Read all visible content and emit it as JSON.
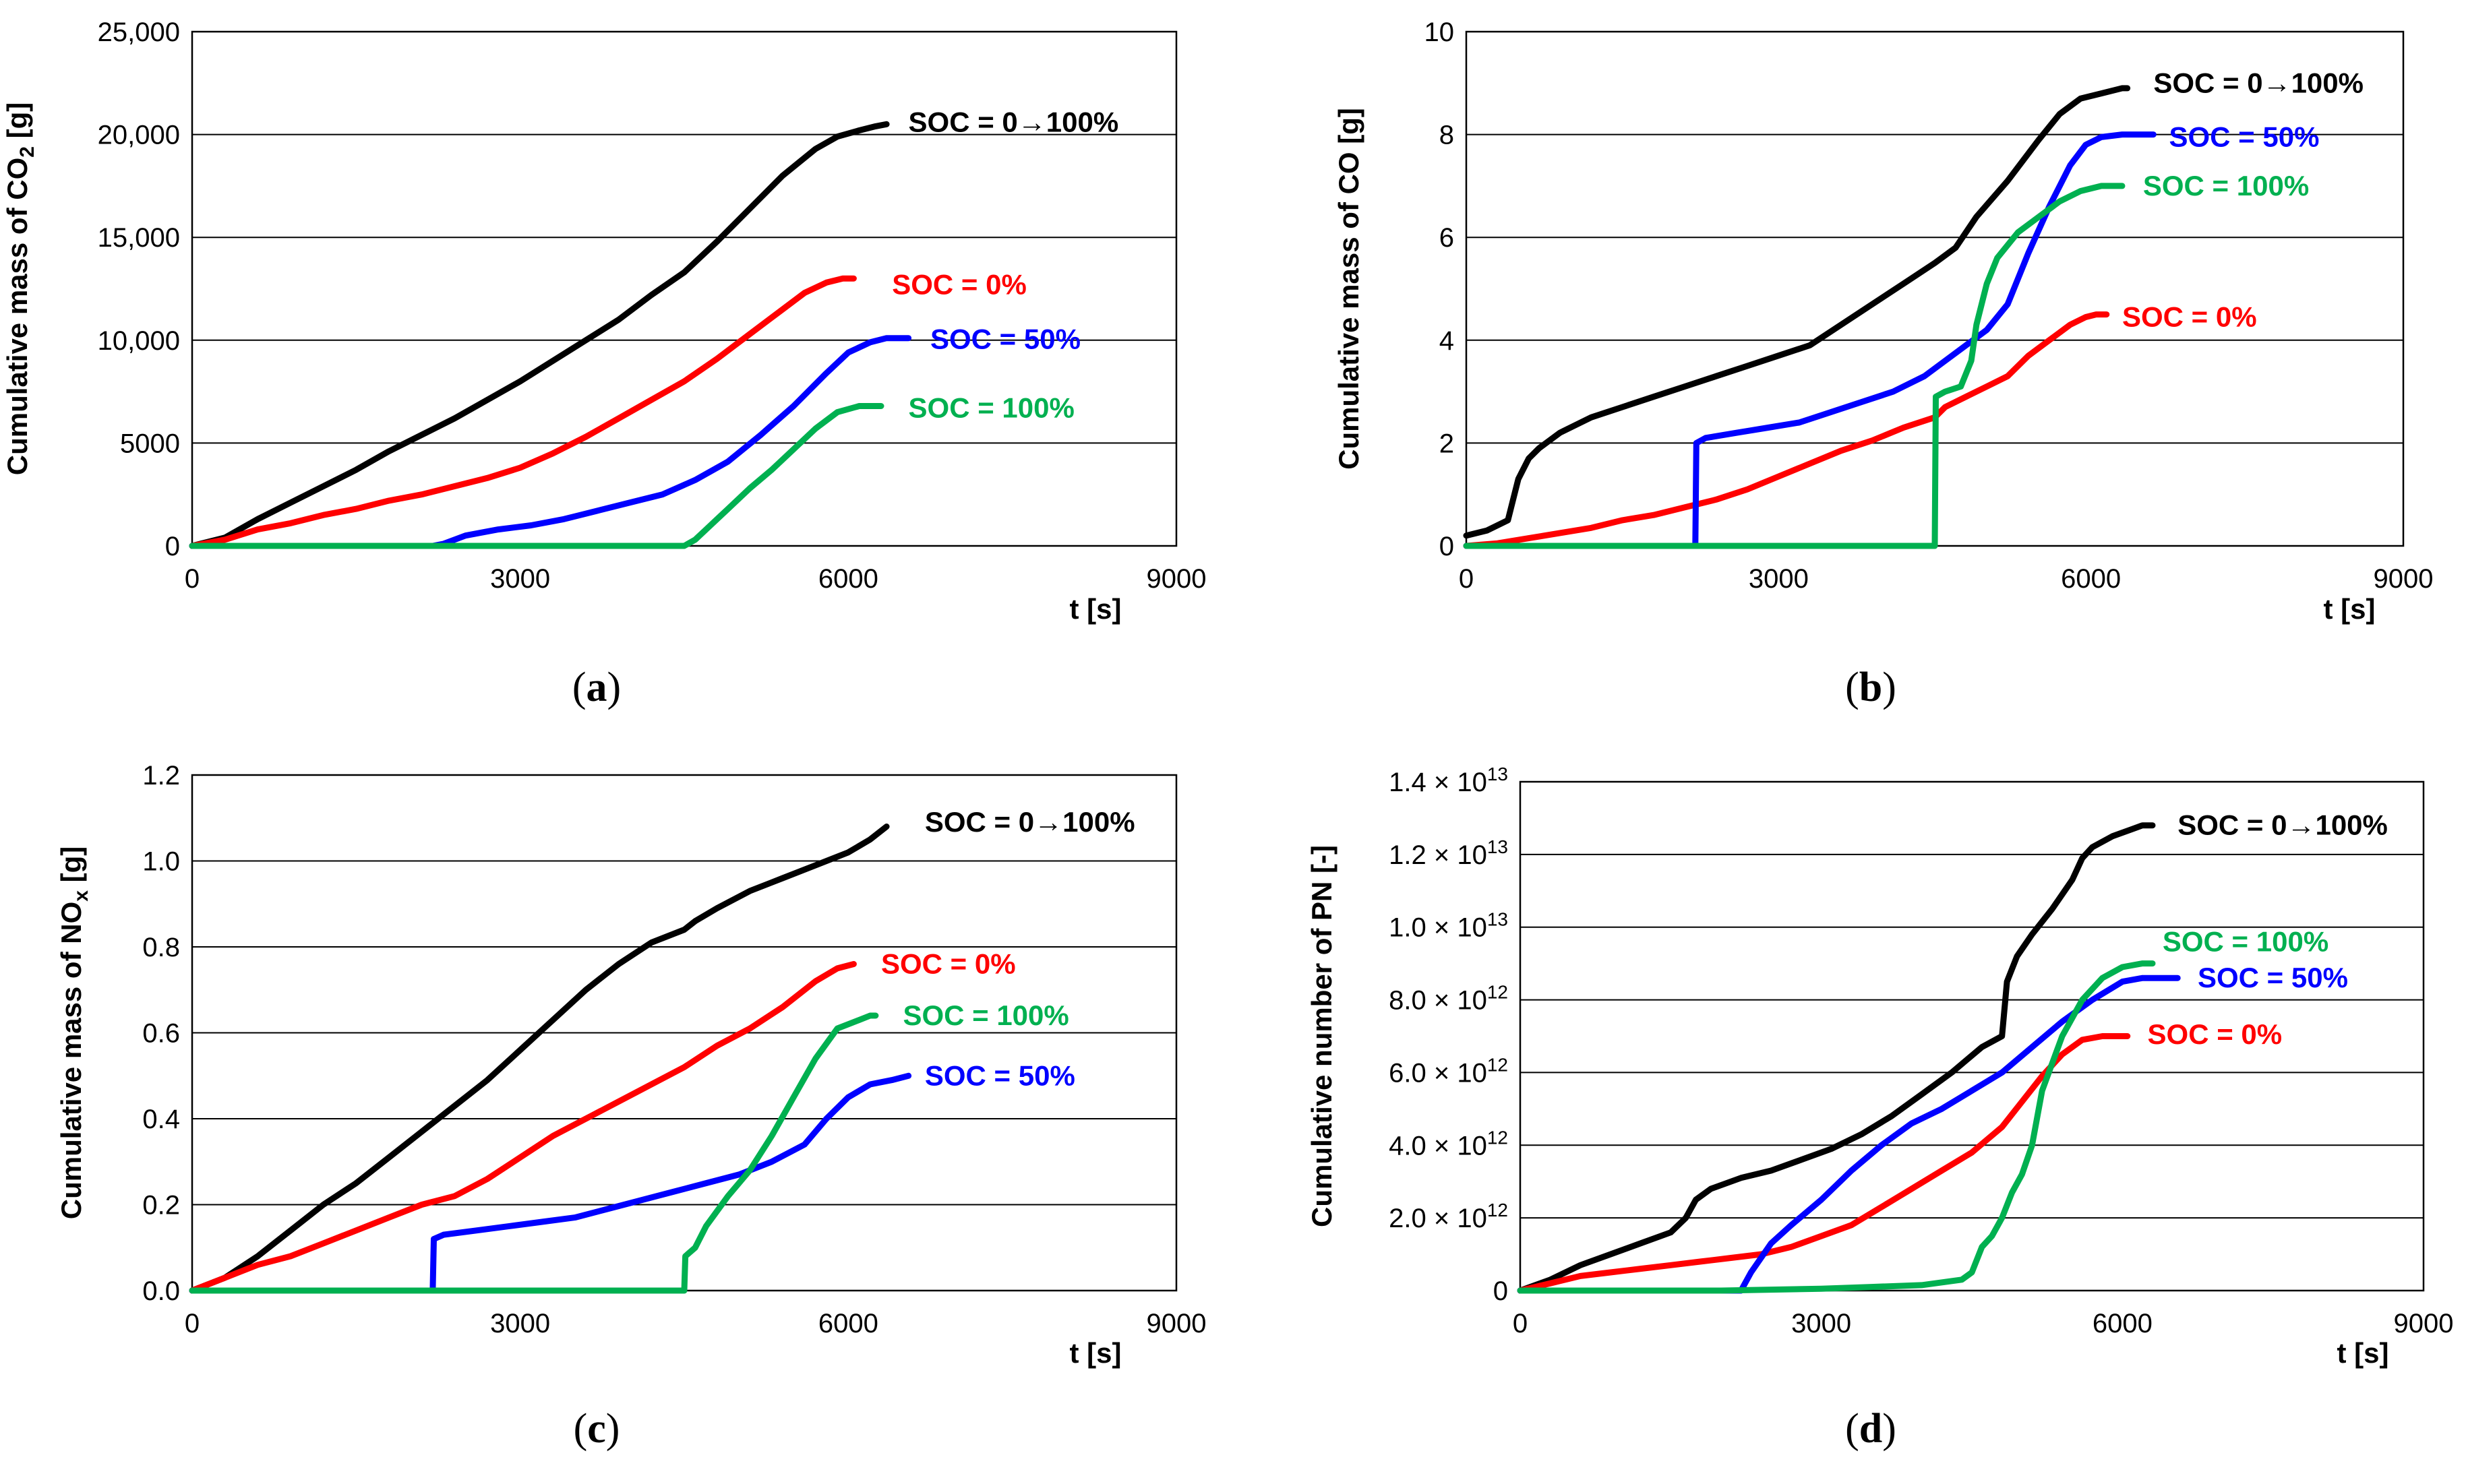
{
  "series_colors": {
    "SOC = 0→100%": "#000000",
    "SOC = 0%": "#ff0000",
    "SOC = 50%": "#0000ff",
    "SOC = 100%": "#00b050"
  },
  "chart_data": [
    {
      "type": "line",
      "panel": "a",
      "caption": "a",
      "ylabel": "Cumulative mass of CO",
      "ylabel_sub": "2",
      "ylabel_unit": " [g]",
      "xlabel": "t [s]",
      "xlim": [
        0,
        9000
      ],
      "ylim": [
        0,
        25000
      ],
      "xticks": [
        0,
        3000,
        6000,
        9000
      ],
      "xtick_labels": [
        "0",
        "3000",
        "6000",
        "9000"
      ],
      "yticks": [
        0,
        5000,
        10000,
        15000,
        20000,
        25000
      ],
      "ytick_labels": [
        "0",
        "5000",
        "10,000",
        "15,000",
        "20,000",
        "25,000"
      ],
      "grid": "horizontal",
      "series": [
        {
          "name": "SOC = 0→100%",
          "label_x": 6550,
          "label_y": 20600,
          "x": [
            0,
            300,
            600,
            900,
            1200,
            1500,
            1800,
            2100,
            2400,
            2700,
            3000,
            3300,
            3600,
            3900,
            4200,
            4500,
            4800,
            5100,
            5400,
            5700,
            5900,
            6100,
            6250,
            6350
          ],
          "y": [
            0,
            400,
            1300,
            2100,
            2900,
            3700,
            4600,
            5400,
            6200,
            7100,
            8000,
            9000,
            10000,
            11000,
            12200,
            13300,
            14800,
            16400,
            18000,
            19300,
            19900,
            20200,
            20400,
            20500
          ]
        },
        {
          "name": "SOC = 0%",
          "label_x": 6400,
          "label_y": 12700,
          "x": [
            0,
            300,
            600,
            900,
            1200,
            1500,
            1800,
            2100,
            2400,
            2700,
            3000,
            3300,
            3600,
            3900,
            4200,
            4500,
            4800,
            5100,
            5400,
            5600,
            5800,
            5950,
            6050
          ],
          "y": [
            0,
            300,
            800,
            1100,
            1500,
            1800,
            2200,
            2500,
            2900,
            3300,
            3800,
            4500,
            5300,
            6200,
            7100,
            8000,
            9100,
            10300,
            11500,
            12300,
            12800,
            13000,
            13000
          ]
        },
        {
          "name": "SOC = 50%",
          "label_x": 6750,
          "label_y": 10050,
          "x": [
            0,
            2200,
            2300,
            2500,
            2800,
            3100,
            3400,
            3700,
            4000,
            4300,
            4600,
            4900,
            5200,
            5500,
            5800,
            6000,
            6200,
            6350,
            6500,
            6550
          ],
          "y": [
            0,
            0,
            100,
            500,
            800,
            1000,
            1300,
            1700,
            2100,
            2500,
            3200,
            4100,
            5400,
            6800,
            8400,
            9400,
            9900,
            10100,
            10100,
            10100
          ]
        },
        {
          "name": "SOC = 100%",
          "label_x": 6550,
          "label_y": 6700,
          "x": [
            0,
            4500,
            4600,
            4700,
            4900,
            5100,
            5300,
            5500,
            5700,
            5900,
            6100,
            6200,
            6300
          ],
          "y": [
            0,
            0,
            300,
            800,
            1800,
            2800,
            3700,
            4700,
            5700,
            6500,
            6800,
            6800,
            6800
          ]
        }
      ]
    },
    {
      "type": "line",
      "panel": "b",
      "caption": "b",
      "ylabel": "Cumulative mass of CO [g]",
      "xlabel": "t [s]",
      "xlim": [
        0,
        9000
      ],
      "ylim": [
        0,
        10
      ],
      "xticks": [
        0,
        3000,
        6000,
        9000
      ],
      "xtick_labels": [
        "0",
        "3000",
        "6000",
        "9000"
      ],
      "yticks": [
        0,
        2,
        4,
        6,
        8,
        10
      ],
      "ytick_labels": [
        "0",
        "2",
        "4",
        "6",
        "8",
        "10"
      ],
      "grid": "horizontal",
      "series": [
        {
          "name": "SOC = 0→100%",
          "label_x": 6600,
          "label_y": 9.0,
          "x": [
            0,
            200,
            400,
            500,
            600,
            700,
            900,
            1200,
            1500,
            1800,
            2100,
            2400,
            2700,
            3000,
            3300,
            3600,
            3900,
            4200,
            4500,
            4700,
            4900,
            5200,
            5500,
            5700,
            5900,
            6100,
            6300,
            6350
          ],
          "y": [
            0.2,
            0.3,
            0.5,
            1.3,
            1.7,
            1.9,
            2.2,
            2.5,
            2.7,
            2.9,
            3.1,
            3.3,
            3.5,
            3.7,
            3.9,
            4.3,
            4.7,
            5.1,
            5.5,
            5.8,
            6.4,
            7.1,
            7.9,
            8.4,
            8.7,
            8.8,
            8.9,
            8.9
          ]
        },
        {
          "name": "SOC = 0%",
          "label_x": 6300,
          "label_y": 4.45,
          "x": [
            0,
            300,
            600,
            900,
            1200,
            1500,
            1800,
            2100,
            2400,
            2700,
            3000,
            3300,
            3600,
            3900,
            4200,
            4500,
            4600,
            4800,
            5000,
            5200,
            5400,
            5600,
            5800,
            5950,
            6050,
            6150
          ],
          "y": [
            0,
            0.05,
            0.15,
            0.25,
            0.35,
            0.5,
            0.6,
            0.75,
            0.9,
            1.1,
            1.35,
            1.6,
            1.85,
            2.05,
            2.3,
            2.5,
            2.7,
            2.9,
            3.1,
            3.3,
            3.7,
            4.0,
            4.3,
            4.45,
            4.5,
            4.5
          ]
        },
        {
          "name": "SOC = 50%",
          "label_x": 6750,
          "label_y": 7.95,
          "x": [
            0,
            2200,
            2210,
            2300,
            2600,
            2900,
            3200,
            3500,
            3800,
            4100,
            4400,
            4600,
            4800,
            5000,
            5200,
            5400,
            5600,
            5800,
            5950,
            6100,
            6300,
            6400,
            6600
          ],
          "y": [
            0,
            0,
            2.0,
            2.1,
            2.2,
            2.3,
            2.4,
            2.6,
            2.8,
            3.0,
            3.3,
            3.6,
            3.9,
            4.2,
            4.7,
            5.7,
            6.6,
            7.4,
            7.8,
            7.95,
            8.0,
            8.0,
            8.0
          ]
        },
        {
          "name": "SOC = 100%",
          "label_x": 6500,
          "label_y": 7.0,
          "x": [
            0,
            4500,
            4510,
            4600,
            4750,
            4850,
            4900,
            5000,
            5100,
            5300,
            5500,
            5700,
            5900,
            6100,
            6200,
            6300
          ],
          "y": [
            0,
            0,
            2.9,
            3.0,
            3.1,
            3.6,
            4.3,
            5.1,
            5.6,
            6.1,
            6.4,
            6.7,
            6.9,
            7.0,
            7.0,
            7.0
          ]
        }
      ]
    },
    {
      "type": "line",
      "panel": "c",
      "caption": "c",
      "ylabel": "Cumulative mass of NO",
      "ylabel_sub": "x",
      "ylabel_unit": " [g]",
      "xlabel": "t [s]",
      "xlim": [
        0,
        9000
      ],
      "ylim": [
        0,
        1.2
      ],
      "xticks": [
        0,
        3000,
        6000,
        9000
      ],
      "xtick_labels": [
        "0",
        "3000",
        "6000",
        "9000"
      ],
      "yticks": [
        0,
        0.2,
        0.4,
        0.6,
        0.8,
        1.0,
        1.2
      ],
      "ytick_labels": [
        "0.0",
        "0.2",
        "0.4",
        "0.6",
        "0.8",
        "1.0",
        "1.2"
      ],
      "grid": "horizontal",
      "series": [
        {
          "name": "SOC = 0→100%",
          "label_x": 6700,
          "label_y": 1.09,
          "x": [
            0,
            300,
            600,
            900,
            1200,
            1500,
            1800,
            2100,
            2400,
            2700,
            3000,
            3300,
            3600,
            3900,
            4200,
            4500,
            4600,
            4800,
            5100,
            5400,
            5700,
            6000,
            6200,
            6350
          ],
          "y": [
            0,
            0.03,
            0.08,
            0.14,
            0.2,
            0.25,
            0.31,
            0.37,
            0.43,
            0.49,
            0.56,
            0.63,
            0.7,
            0.76,
            0.81,
            0.84,
            0.86,
            0.89,
            0.93,
            0.96,
            0.99,
            1.02,
            1.05,
            1.08
          ]
        },
        {
          "name": "SOC = 0%",
          "label_x": 6300,
          "label_y": 0.76,
          "x": [
            0,
            300,
            600,
            900,
            1200,
            1500,
            1800,
            2100,
            2400,
            2700,
            3000,
            3300,
            3600,
            3900,
            4200,
            4500,
            4800,
            5100,
            5400,
            5700,
            5900,
            6050
          ],
          "y": [
            0,
            0.03,
            0.06,
            0.08,
            0.11,
            0.14,
            0.17,
            0.2,
            0.22,
            0.26,
            0.31,
            0.36,
            0.4,
            0.44,
            0.48,
            0.52,
            0.57,
            0.61,
            0.66,
            0.72,
            0.75,
            0.76
          ]
        },
        {
          "name": "SOC = 50%",
          "label_x": 6700,
          "label_y": 0.5,
          "x": [
            0,
            2200,
            2210,
            2300,
            2600,
            2900,
            3200,
            3500,
            3800,
            4100,
            4400,
            4700,
            5000,
            5300,
            5600,
            5800,
            6000,
            6200,
            6400,
            6550
          ],
          "y": [
            0,
            0,
            0.12,
            0.13,
            0.14,
            0.15,
            0.16,
            0.17,
            0.19,
            0.21,
            0.23,
            0.25,
            0.27,
            0.3,
            0.34,
            0.4,
            0.45,
            0.48,
            0.49,
            0.5
          ]
        },
        {
          "name": "SOC = 100%",
          "label_x": 6500,
          "label_y": 0.64,
          "x": [
            0,
            4500,
            4510,
            4600,
            4700,
            4900,
            5100,
            5300,
            5500,
            5700,
            5900,
            6100,
            6200,
            6250
          ],
          "y": [
            0,
            0,
            0.08,
            0.1,
            0.15,
            0.22,
            0.28,
            0.36,
            0.45,
            0.54,
            0.61,
            0.63,
            0.64,
            0.64
          ]
        }
      ]
    },
    {
      "type": "line",
      "panel": "d",
      "caption": "d",
      "ylabel": "Cumulative number of PN [-]",
      "xlabel": "t [s]",
      "xlim": [
        0,
        9000
      ],
      "ylim": [
        0,
        14
      ],
      "y_scale_note": "×10^12",
      "xticks": [
        0,
        3000,
        6000,
        9000
      ],
      "xtick_labels": [
        "0",
        "3000",
        "6000",
        "9000"
      ],
      "yticks": [
        0,
        2,
        4,
        6,
        8,
        10,
        12,
        14
      ],
      "ytick_labels": [
        {
          "m": "0",
          "e": ""
        },
        {
          "m": "2.0 × 10",
          "e": "12"
        },
        {
          "m": "4.0 × 10",
          "e": "12"
        },
        {
          "m": "6.0 × 10",
          "e": "12"
        },
        {
          "m": "8.0 × 10",
          "e": "12"
        },
        {
          "m": "1.0 × 10",
          "e": "13"
        },
        {
          "m": "1.2 × 10",
          "e": "13"
        },
        {
          "m": "1.4 × 10",
          "e": "13"
        }
      ],
      "grid": "horizontal",
      "series": [
        {
          "name": "SOC = 0→100%",
          "label_x": 6550,
          "label_y": 12.8,
          "x": [
            0,
            300,
            600,
            900,
            1200,
            1500,
            1650,
            1750,
            1900,
            2200,
            2500,
            2800,
            3100,
            3400,
            3700,
            4000,
            4300,
            4600,
            4800,
            4850,
            4950,
            5100,
            5300,
            5500,
            5600,
            5700,
            5900,
            6100,
            6200,
            6300
          ],
          "y": [
            0,
            0.3,
            0.7,
            1.0,
            1.3,
            1.6,
            2.0,
            2.5,
            2.8,
            3.1,
            3.3,
            3.6,
            3.9,
            4.3,
            4.8,
            5.4,
            6.0,
            6.7,
            7.0,
            8.5,
            9.2,
            9.8,
            10.5,
            11.3,
            11.9,
            12.2,
            12.5,
            12.7,
            12.8,
            12.8
          ]
        },
        {
          "name": "SOC = 0%",
          "label_x": 6250,
          "label_y": 7.05,
          "x": [
            0,
            300,
            600,
            900,
            1200,
            1500,
            1800,
            2100,
            2400,
            2700,
            3000,
            3300,
            3600,
            3900,
            4200,
            4500,
            4800,
            5000,
            5200,
            5400,
            5600,
            5800,
            5950,
            6050
          ],
          "y": [
            0,
            0.2,
            0.4,
            0.5,
            0.6,
            0.7,
            0.8,
            0.9,
            1.0,
            1.2,
            1.5,
            1.8,
            2.3,
            2.8,
            3.3,
            3.8,
            4.5,
            5.2,
            5.9,
            6.5,
            6.9,
            7.0,
            7.0,
            7.0
          ]
        },
        {
          "name": "SOC = 50%",
          "label_x": 6750,
          "label_y": 8.6,
          "x": [
            0,
            2200,
            2300,
            2500,
            2700,
            3000,
            3300,
            3600,
            3900,
            4200,
            4500,
            4800,
            5100,
            5400,
            5700,
            6000,
            6200,
            6400,
            6550
          ],
          "y": [
            0,
            0,
            0.5,
            1.3,
            1.8,
            2.5,
            3.3,
            4.0,
            4.6,
            5.0,
            5.5,
            6.0,
            6.7,
            7.4,
            8.0,
            8.5,
            8.6,
            8.6,
            8.6
          ]
        },
        {
          "name": "SOC = 100%",
          "label_x": 6400,
          "label_y": 9.6,
          "x": [
            0,
            2000,
            3000,
            3500,
            4000,
            4400,
            4500,
            4600,
            4700,
            4800,
            4900,
            5000,
            5100,
            5200,
            5400,
            5600,
            5800,
            6000,
            6200,
            6300
          ],
          "y": [
            0,
            0,
            0.05,
            0.1,
            0.15,
            0.3,
            0.5,
            1.2,
            1.5,
            2.0,
            2.7,
            3.2,
            4.0,
            5.5,
            7.0,
            8.0,
            8.6,
            8.9,
            9.0,
            9.0
          ]
        }
      ]
    }
  ]
}
